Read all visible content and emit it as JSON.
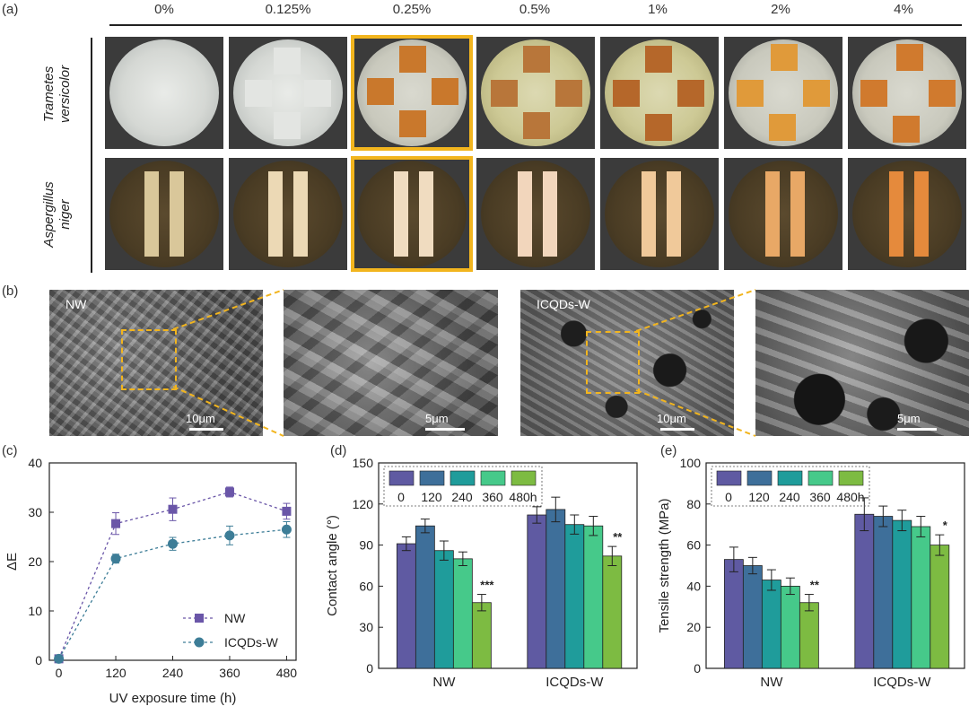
{
  "panel_labels": {
    "a": "(a)",
    "b": "(b)",
    "c": "(c)",
    "d": "(d)",
    "e": "(e)"
  },
  "panel_a": {
    "concentrations": [
      "0%",
      "0.125%",
      "0.25%",
      "0.5%",
      "1%",
      "2%",
      "4%"
    ],
    "highlighted": "0.25%",
    "row_labels": [
      {
        "line1": "Trametes",
        "line2": "versicolor"
      },
      {
        "line1": "Aspergillus",
        "line2": "niger"
      }
    ],
    "colors": {
      "highlight": "#f2b51e"
    }
  },
  "panel_b": {
    "nw_label": "NW",
    "icqd_label": "ICQDs-W",
    "scale_large": "10μm",
    "scale_small": "5μm"
  },
  "chart_data": [
    {
      "type": "line",
      "xlabel": "UV exposure time (h)",
      "ylabel": "ΔE",
      "x": [
        0,
        120,
        240,
        360,
        480
      ],
      "xticks": [
        "0",
        "120",
        "240",
        "360",
        "480"
      ],
      "yticks": [
        "0",
        "10",
        "20",
        "30",
        "40"
      ],
      "ylim": [
        0,
        40
      ],
      "legend_position": "bottom-right",
      "series": [
        {
          "name": "NW",
          "marker": "square",
          "color": "#6a56a8",
          "values": [
            0.3,
            27.7,
            30.6,
            34.1,
            30.2
          ],
          "errors": [
            0.5,
            2.2,
            2.3,
            1.0,
            1.6
          ]
        },
        {
          "name": "ICQDs-W",
          "marker": "circle",
          "color": "#3d7d97",
          "values": [
            0.3,
            20.6,
            23.6,
            25.3,
            26.5
          ],
          "errors": [
            0.5,
            0.9,
            1.3,
            1.9,
            1.6
          ]
        }
      ]
    },
    {
      "type": "bar",
      "ylabel": "Contact angle (°)",
      "categories": [
        "NW",
        "ICQDs-W"
      ],
      "ylim": [
        0,
        150
      ],
      "yticks": [
        "0",
        "30",
        "60",
        "90",
        "120",
        "150"
      ],
      "legend_position": "top-left",
      "series": [
        {
          "name": "0",
          "color": "#5f5aa2",
          "values": [
            91,
            112
          ],
          "errors": [
            5,
            6
          ]
        },
        {
          "name": "120",
          "color": "#3e6f9a",
          "values": [
            104,
            116
          ],
          "errors": [
            5,
            9
          ]
        },
        {
          "name": "240",
          "color": "#1f9c9b",
          "values": [
            86,
            105
          ],
          "errors": [
            7,
            7
          ]
        },
        {
          "name": "360",
          "color": "#46c98a",
          "values": [
            80,
            104
          ],
          "errors": [
            5,
            7
          ]
        },
        {
          "name": "480h",
          "color": "#7dbb42",
          "values": [
            48,
            82
          ],
          "errors": [
            6,
            7
          ]
        }
      ],
      "annotations": [
        {
          "category": "NW",
          "series": "480h",
          "text": "***"
        },
        {
          "category": "ICQDs-W",
          "series": "480h",
          "text": "**"
        }
      ]
    },
    {
      "type": "bar",
      "ylabel": "Tensile strength (MPa)",
      "categories": [
        "NW",
        "ICQDs-W"
      ],
      "ylim": [
        0,
        100
      ],
      "yticks": [
        "0",
        "20",
        "40",
        "60",
        "80",
        "100"
      ],
      "legend_position": "top-left",
      "series": [
        {
          "name": "0",
          "color": "#5f5aa2",
          "values": [
            53,
            75
          ],
          "errors": [
            6,
            8
          ]
        },
        {
          "name": "120",
          "color": "#3e6f9a",
          "values": [
            50,
            74
          ],
          "errors": [
            4,
            5
          ]
        },
        {
          "name": "240",
          "color": "#1f9c9b",
          "values": [
            43,
            72
          ],
          "errors": [
            5,
            5
          ]
        },
        {
          "name": "360",
          "color": "#46c98a",
          "values": [
            40,
            69
          ],
          "errors": [
            4,
            5
          ]
        },
        {
          "name": "480h",
          "color": "#7dbb42",
          "values": [
            32,
            60
          ],
          "errors": [
            4,
            5
          ]
        }
      ],
      "annotations": [
        {
          "category": "NW",
          "series": "480h",
          "text": "**"
        },
        {
          "category": "ICQDs-W",
          "series": "480h",
          "text": "*"
        }
      ]
    }
  ]
}
